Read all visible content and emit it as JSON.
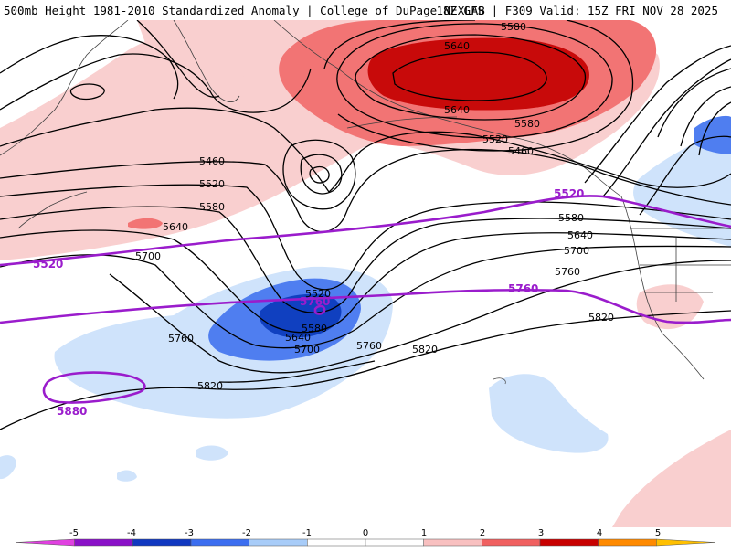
{
  "header": {
    "title_left": "500mb Height 1981-2010 Standardized Anomaly | College of DuPage NEXLAB",
    "title_right": "18Z GFS | F309 Valid: 15Z FRI NOV 28 2025"
  },
  "contour_labels": [
    {
      "id": "c5640-a",
      "text": "5640"
    },
    {
      "id": "c5580-a",
      "text": "5580"
    },
    {
      "id": "c5640-b",
      "text": "5640"
    },
    {
      "id": "c5580-b",
      "text": "5580"
    },
    {
      "id": "c5520-a",
      "text": "5520"
    },
    {
      "id": "c5460-a",
      "text": "5460"
    },
    {
      "id": "c5460-b",
      "text": "5460"
    },
    {
      "id": "c5520-b",
      "text": "5520"
    },
    {
      "id": "c5580-c",
      "text": "5580"
    },
    {
      "id": "c5640-c",
      "text": "5640"
    },
    {
      "id": "c5700-a",
      "text": "5700"
    },
    {
      "id": "c5580-d",
      "text": "5580"
    },
    {
      "id": "c5640-d",
      "text": "5640"
    },
    {
      "id": "c5700-b",
      "text": "5700"
    },
    {
      "id": "c5760-a",
      "text": "5760"
    },
    {
      "id": "c5520-c",
      "text": "5520"
    },
    {
      "id": "c5580-e",
      "text": "5580"
    },
    {
      "id": "c5640-e",
      "text": "5640"
    },
    {
      "id": "c5700-c",
      "text": "5700"
    },
    {
      "id": "c5760-b",
      "text": "5760"
    },
    {
      "id": "c5760-c",
      "text": "5760"
    },
    {
      "id": "c5820-a",
      "text": "5820"
    },
    {
      "id": "c5820-b",
      "text": "5820"
    },
    {
      "id": "c5820-c",
      "text": "5820"
    }
  ],
  "highlight_labels": [
    {
      "id": "h5520-west",
      "text": "5520"
    },
    {
      "id": "h5520-east",
      "text": "5520"
    },
    {
      "id": "h5760-low",
      "text": "5760"
    },
    {
      "id": "h5760-east",
      "text": "5760"
    },
    {
      "id": "h5880",
      "text": "5880"
    }
  ],
  "colorbar": {
    "ticks": [
      "-5",
      "-4",
      "-3",
      "-2",
      "-1",
      "0",
      "1",
      "2",
      "3",
      "4",
      "5"
    ],
    "colors": [
      "#e040e0",
      "#8a10c8",
      "#1038c0",
      "#3c6ef0",
      "#a8ccf8",
      "#ffffff",
      "#ffffff",
      "#f8c0c0",
      "#f06060",
      "#c80000",
      "#ff8a00",
      "#ffc000"
    ]
  }
}
